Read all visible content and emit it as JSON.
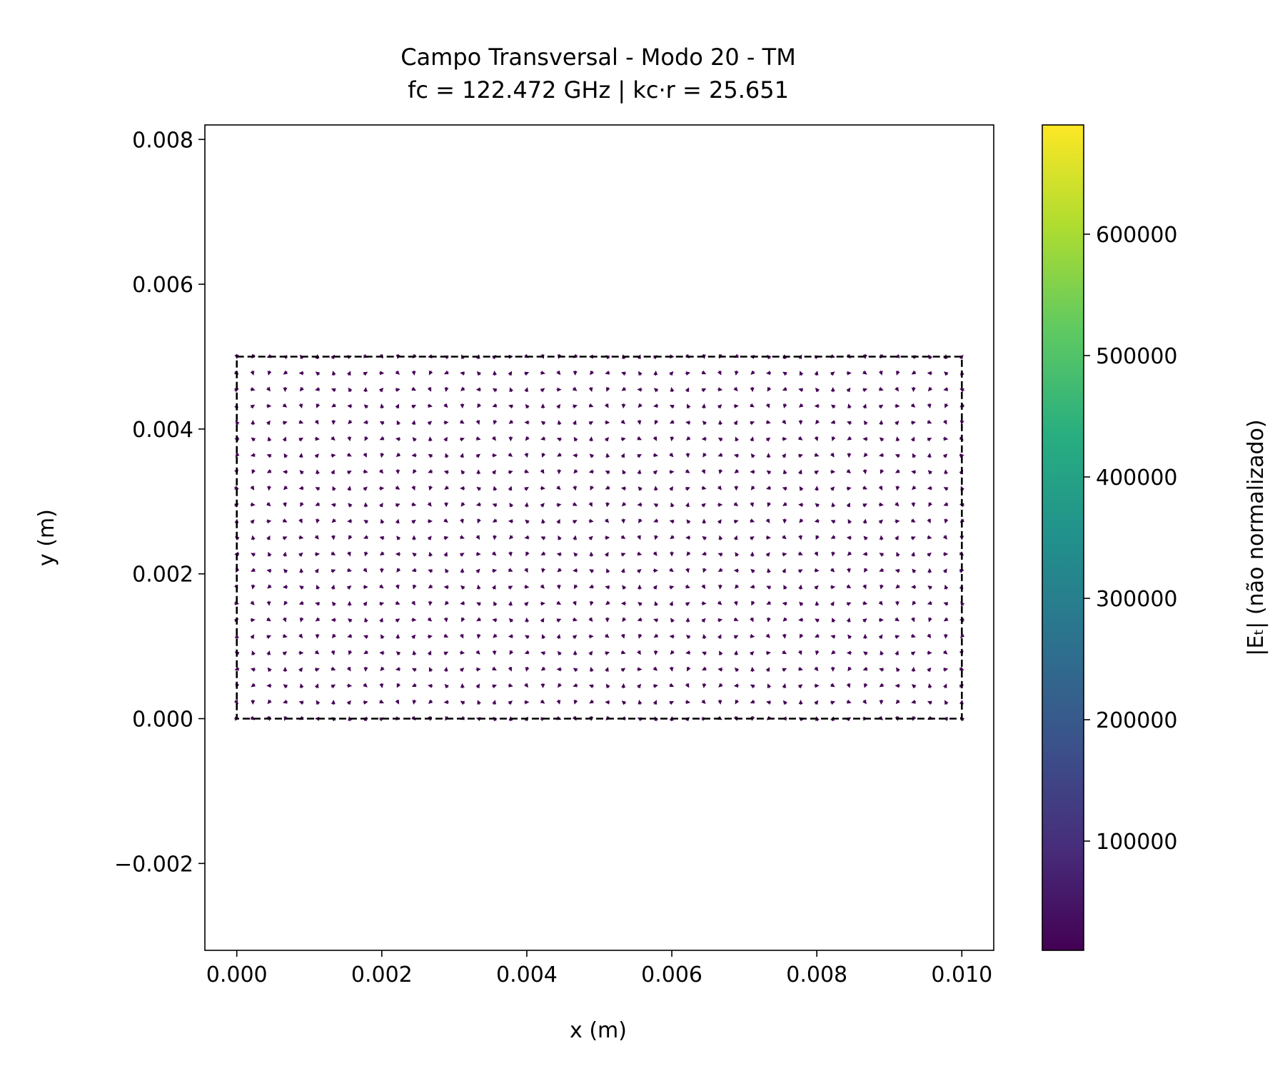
{
  "chart_data": {
    "type": "quiver",
    "title": "Campo Transversal - Modo 20 - TM",
    "subtitle": "fc = 122.472 GHz | kc·r = 25.651",
    "xlabel": "x (m)",
    "ylabel": "y (m)",
    "xlim": [
      -0.00044,
      0.01044
    ],
    "ylim": [
      -0.0032,
      0.0082
    ],
    "xticks": [
      0.0,
      0.002,
      0.004,
      0.006,
      0.008,
      0.01
    ],
    "xtick_labels": [
      "0.000",
      "0.002",
      "0.004",
      "0.006",
      "0.008",
      "0.010"
    ],
    "yticks": [
      -0.002,
      0.0,
      0.002,
      0.004,
      0.006,
      0.008
    ],
    "ytick_labels": [
      "−0.002",
      "0.000",
      "0.002",
      "0.004",
      "0.006",
      "0.008"
    ],
    "boundary": {
      "x": [
        0.0,
        0.01
      ],
      "y": [
        0.0,
        0.005
      ],
      "style": "dashed",
      "color": "#000000"
    },
    "field": {
      "mode": "TM",
      "m": 2,
      "n": 0,
      "waveguide_a": 0.01,
      "waveguide_b": 0.005,
      "grid_nx": 46,
      "grid_ny": 23,
      "max_magnitude": 690000
    },
    "colorbar": {
      "label": "|Eₜ| (não normalizado)",
      "colormap": "viridis",
      "range": [
        10000,
        690000
      ],
      "ticks": [
        100000,
        200000,
        300000,
        400000,
        500000,
        600000
      ],
      "tick_labels": [
        "100000",
        "200000",
        "300000",
        "400000",
        "500000",
        "600000"
      ]
    }
  }
}
